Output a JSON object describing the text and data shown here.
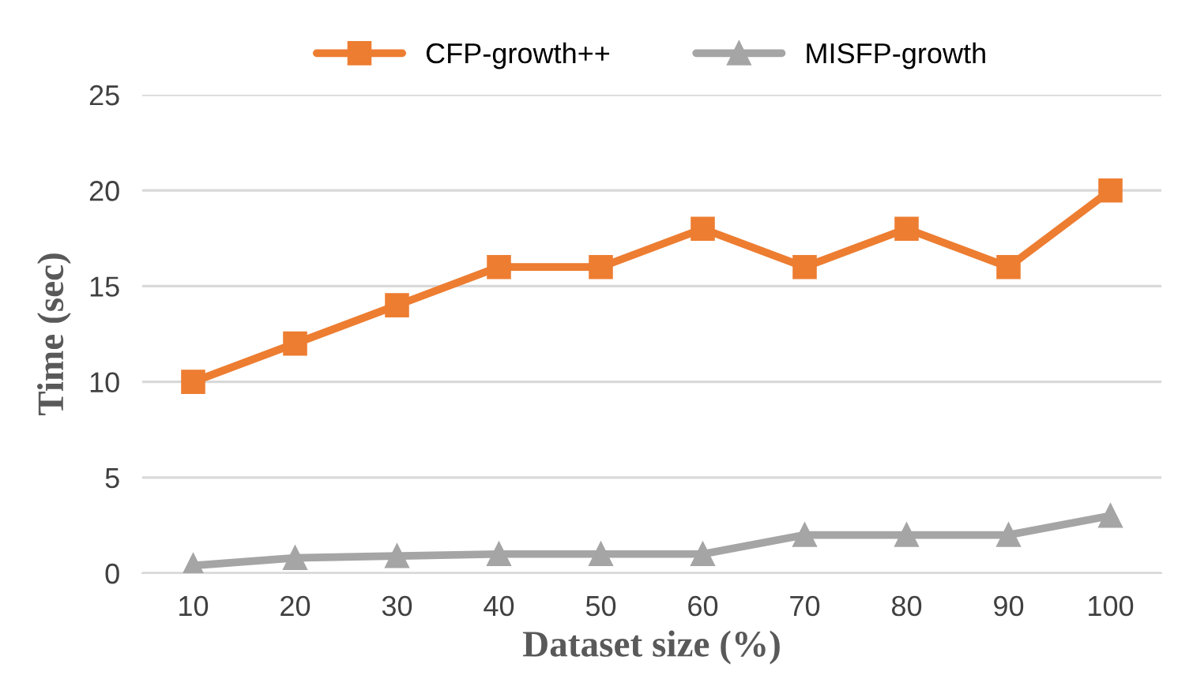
{
  "chart_data": {
    "type": "line",
    "xlabel": "Dataset size (%)",
    "ylabel": "Time (sec)",
    "categories": [
      "10",
      "20",
      "30",
      "40",
      "50",
      "60",
      "70",
      "80",
      "90",
      "100"
    ],
    "series": [
      {
        "name": "CFP-growth++",
        "color": "#ed7d31",
        "marker": "square",
        "values": [
          10,
          12,
          14,
          16,
          16,
          18,
          16,
          18,
          16,
          20
        ]
      },
      {
        "name": "MISFP-growth",
        "color": "#a5a5a5",
        "marker": "triangle",
        "values": [
          0.4,
          0.8,
          0.9,
          1,
          1,
          1,
          2,
          2,
          2,
          3
        ]
      }
    ],
    "ylim": [
      0,
      25
    ],
    "yticks": [
      0,
      5,
      10,
      15,
      20,
      25
    ],
    "grid": "y",
    "legend": "top",
    "line_style": "solid"
  }
}
